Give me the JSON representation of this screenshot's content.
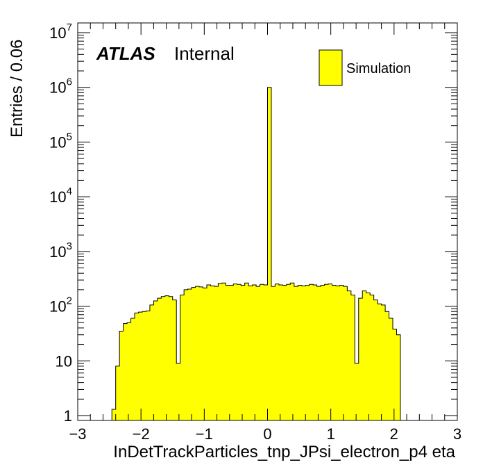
{
  "chart_data": {
    "type": "histogram",
    "xlabel": "InDetTrackParticles_tnp_JPsi_electron_p4 eta",
    "ylabel": "Entries / 0.06",
    "xlim": [
      -3,
      3
    ],
    "ylim": [
      0.8,
      12000000
    ],
    "yscale": "log",
    "x_ticks": [
      {
        "v": -3,
        "label": "−3"
      },
      {
        "v": -2,
        "label": "−2"
      },
      {
        "v": -1,
        "label": "−1"
      },
      {
        "v": 0,
        "label": "0"
      },
      {
        "v": 1,
        "label": "1"
      },
      {
        "v": 2,
        "label": "2"
      },
      {
        "v": 3,
        "label": "3"
      }
    ],
    "y_ticks": [
      {
        "v": 1,
        "base": "1",
        "exp": ""
      },
      {
        "v": 10,
        "base": "10",
        "exp": ""
      },
      {
        "v": 100,
        "base": "10",
        "exp": "2"
      },
      {
        "v": 1000,
        "base": "10",
        "exp": "3"
      },
      {
        "v": 10000,
        "base": "10",
        "exp": "4"
      },
      {
        "v": 100000,
        "base": "10",
        "exp": "5"
      },
      {
        "v": 1000000,
        "base": "10",
        "exp": "6"
      },
      {
        "v": 10000000,
        "base": "10",
        "exp": "7"
      }
    ],
    "bin_width": 0.06,
    "bin_edges_start": -2.46,
    "values": [
      1.3,
      8,
      35,
      48,
      50,
      60,
      75,
      78,
      80,
      82,
      105,
      125,
      140,
      150,
      155,
      150,
      130,
      9,
      160,
      200,
      205,
      220,
      230,
      225,
      215,
      245,
      235,
      230,
      260,
      265,
      240,
      240,
      255,
      250,
      240,
      265,
      235,
      245,
      230,
      250,
      245,
      1000000,
      230,
      255,
      245,
      240,
      250,
      265,
      230,
      240,
      235,
      240,
      250,
      245,
      230,
      240,
      250,
      255,
      240,
      235,
      240,
      230,
      190,
      160,
      9,
      140,
      190,
      175,
      160,
      130,
      110,
      105,
      80,
      60,
      38,
      30
    ],
    "legend": {
      "position": "top-right",
      "entries": [
        {
          "label": "Simulation",
          "color": "#ffff00"
        }
      ]
    },
    "annotation": {
      "bold": "ATLAS",
      "text": "Internal"
    },
    "fill_color": "#ffff00",
    "line_color": "#000000"
  }
}
